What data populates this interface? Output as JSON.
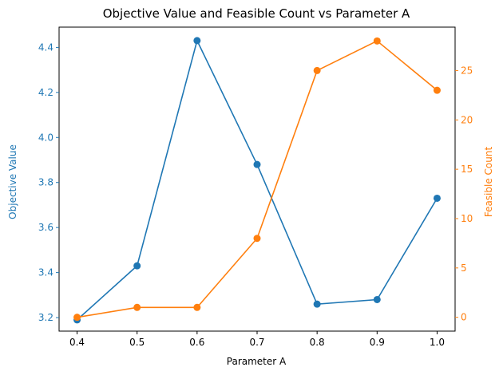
{
  "chart_data": {
    "type": "line",
    "title": "Objective Value and Feasible Count vs Parameter A",
    "xlabel": "Parameter A",
    "x": [
      0.4,
      0.5,
      0.6,
      0.7,
      0.8,
      0.9,
      1.0
    ],
    "xticks": [
      "0.4",
      "0.5",
      "0.6",
      "0.7",
      "0.8",
      "0.9",
      "1.0"
    ],
    "xlim": [
      0.37,
      1.03
    ],
    "grid": false,
    "legend": "none",
    "left_axis": {
      "label": "Objective Value",
      "color": "#1f77b4",
      "ylim": [
        3.14,
        4.49
      ],
      "ticks": [
        3.2,
        3.4,
        3.6,
        3.8,
        4.0,
        4.2,
        4.4
      ],
      "tick_labels": [
        "3.2",
        "3.4",
        "3.6",
        "3.8",
        "4.0",
        "4.2",
        "4.4"
      ]
    },
    "right_axis": {
      "label": "Feasible Count",
      "color": "#ff7f0e",
      "ylim": [
        -1.4,
        29.4
      ],
      "ticks": [
        0,
        5,
        10,
        15,
        20,
        25
      ],
      "tick_labels": [
        "0",
        "5",
        "10",
        "15",
        "20",
        "25"
      ]
    },
    "series": [
      {
        "axis": "left",
        "color": "#1f77b4",
        "marker": "circle",
        "values": [
          3.19,
          3.43,
          4.43,
          3.88,
          3.26,
          3.28,
          3.73
        ]
      },
      {
        "axis": "right",
        "color": "#ff7f0e",
        "marker": "circle",
        "values": [
          0,
          1,
          1,
          8,
          25,
          28,
          23
        ]
      }
    ]
  }
}
